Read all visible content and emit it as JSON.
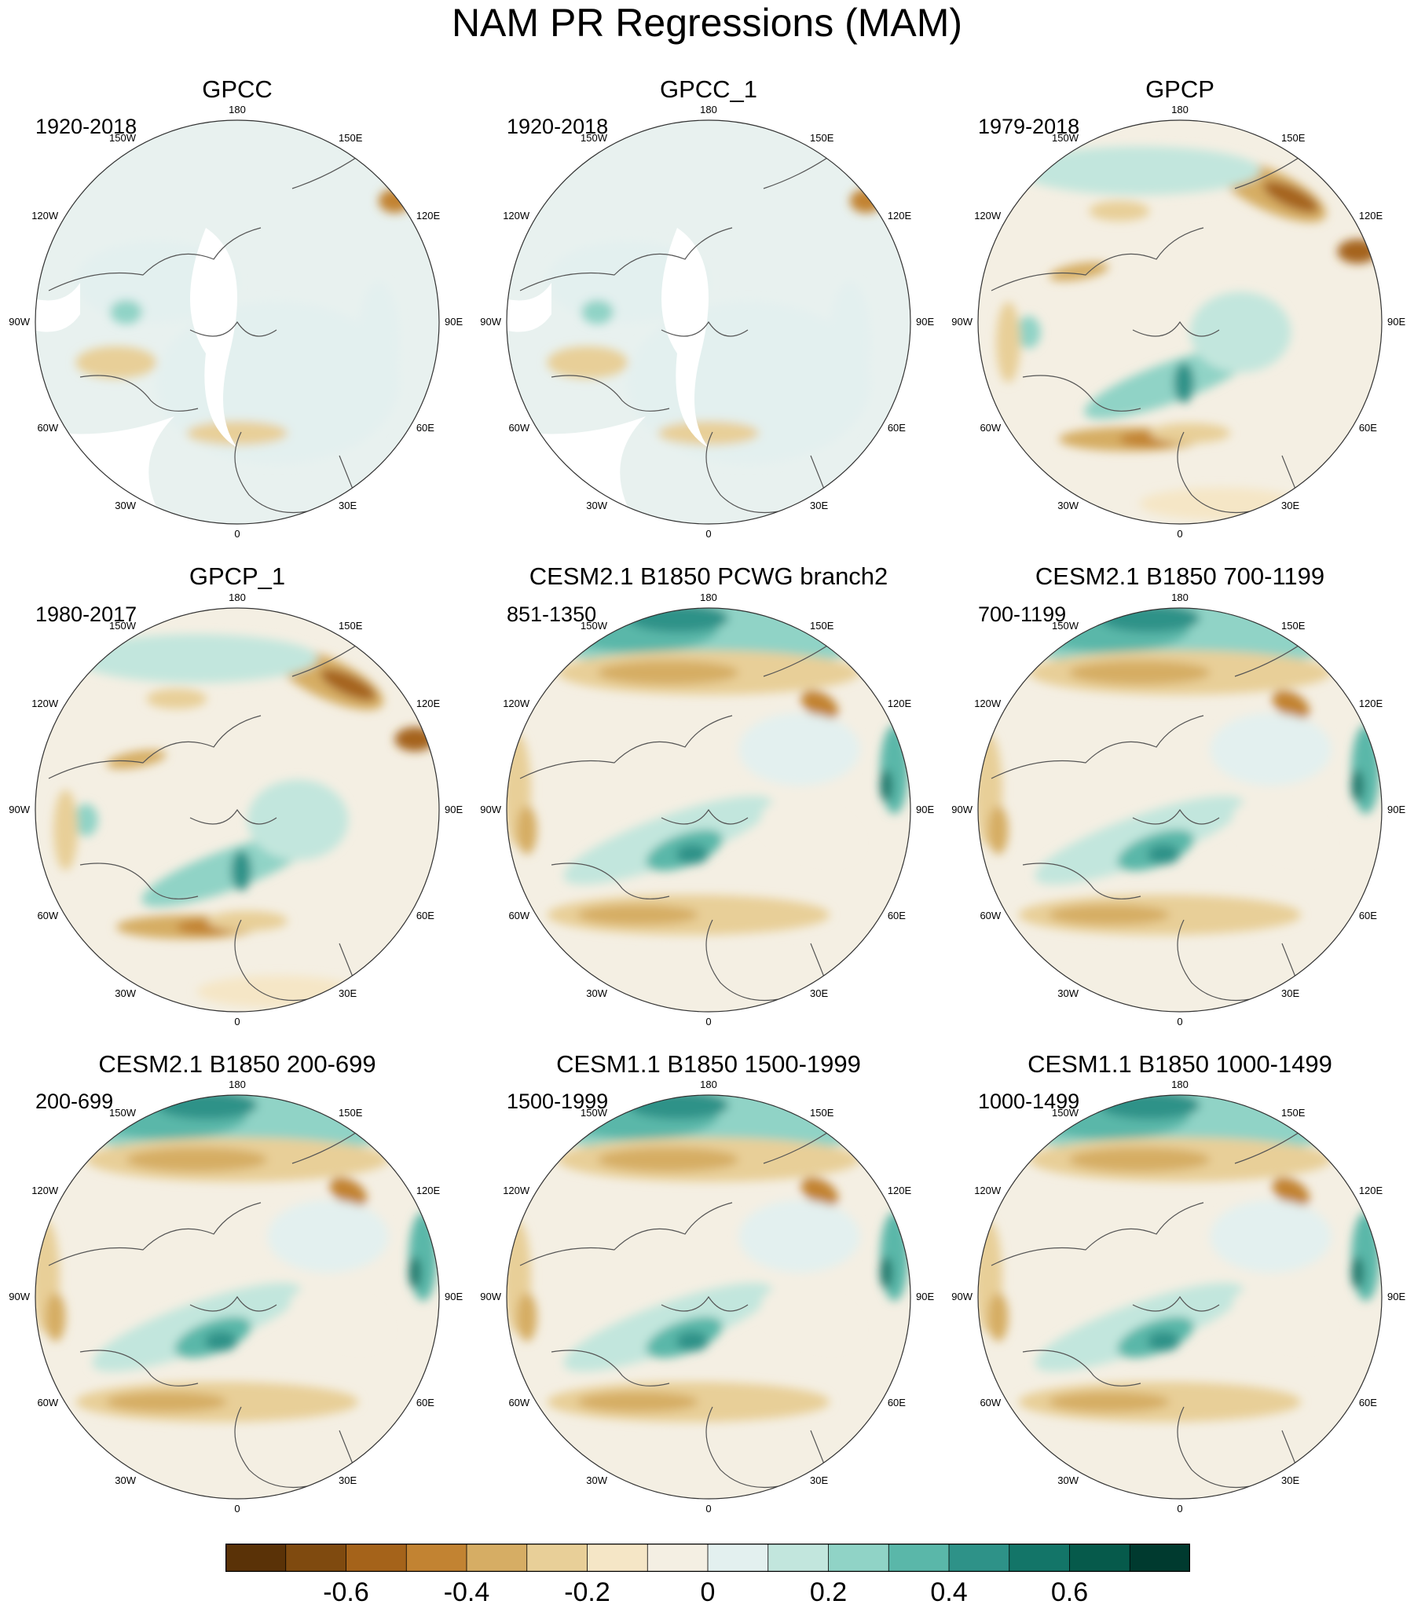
{
  "title": "NAM PR Regressions (MAM)",
  "panels": [
    {
      "title": "GPCC",
      "years": "1920-2018",
      "kind": "obs_gpcc"
    },
    {
      "title": "GPCC_1",
      "years": "1920-2018",
      "kind": "obs_gpcc"
    },
    {
      "title": "GPCP",
      "years": "1979-2018",
      "kind": "obs_gpcp"
    },
    {
      "title": "GPCP_1",
      "years": "1980-2017",
      "kind": "obs_gpcp"
    },
    {
      "title": "CESM2.1 B1850 PCWG branch2",
      "years": "851-1350",
      "kind": "model"
    },
    {
      "title": "CESM2.1 B1850 700-1199",
      "years": "700-1199",
      "kind": "model"
    },
    {
      "title": "CESM2.1 B1850 200-699",
      "years": "200-699",
      "kind": "model"
    },
    {
      "title": "CESM1.1 B1850 1500-1999",
      "years": "1500-1999",
      "kind": "model"
    },
    {
      "title": "CESM1.1 B1850 1000-1499",
      "years": "1000-1499",
      "kind": "model"
    }
  ],
  "longitude_labels": [
    "180",
    "150E",
    "120E",
    "90E",
    "60E",
    "30E",
    "0",
    "30W",
    "60W",
    "90W",
    "120W",
    "150W"
  ],
  "colorbar": {
    "colors": [
      "#5a3207",
      "#7f4a0f",
      "#a5631a",
      "#c28332",
      "#d6ad64",
      "#e8cf98",
      "#f5e6c6",
      "#f4efe3",
      "#e3f0ef",
      "#c2e6dd",
      "#90d3c6",
      "#5ab7a9",
      "#2e9288",
      "#137568",
      "#065a4b",
      "#003a2f"
    ],
    "tick_labels": [
      "-0.6",
      "-0.4",
      "-0.2",
      "0",
      "0.2",
      "0.4",
      "0.6"
    ]
  }
}
